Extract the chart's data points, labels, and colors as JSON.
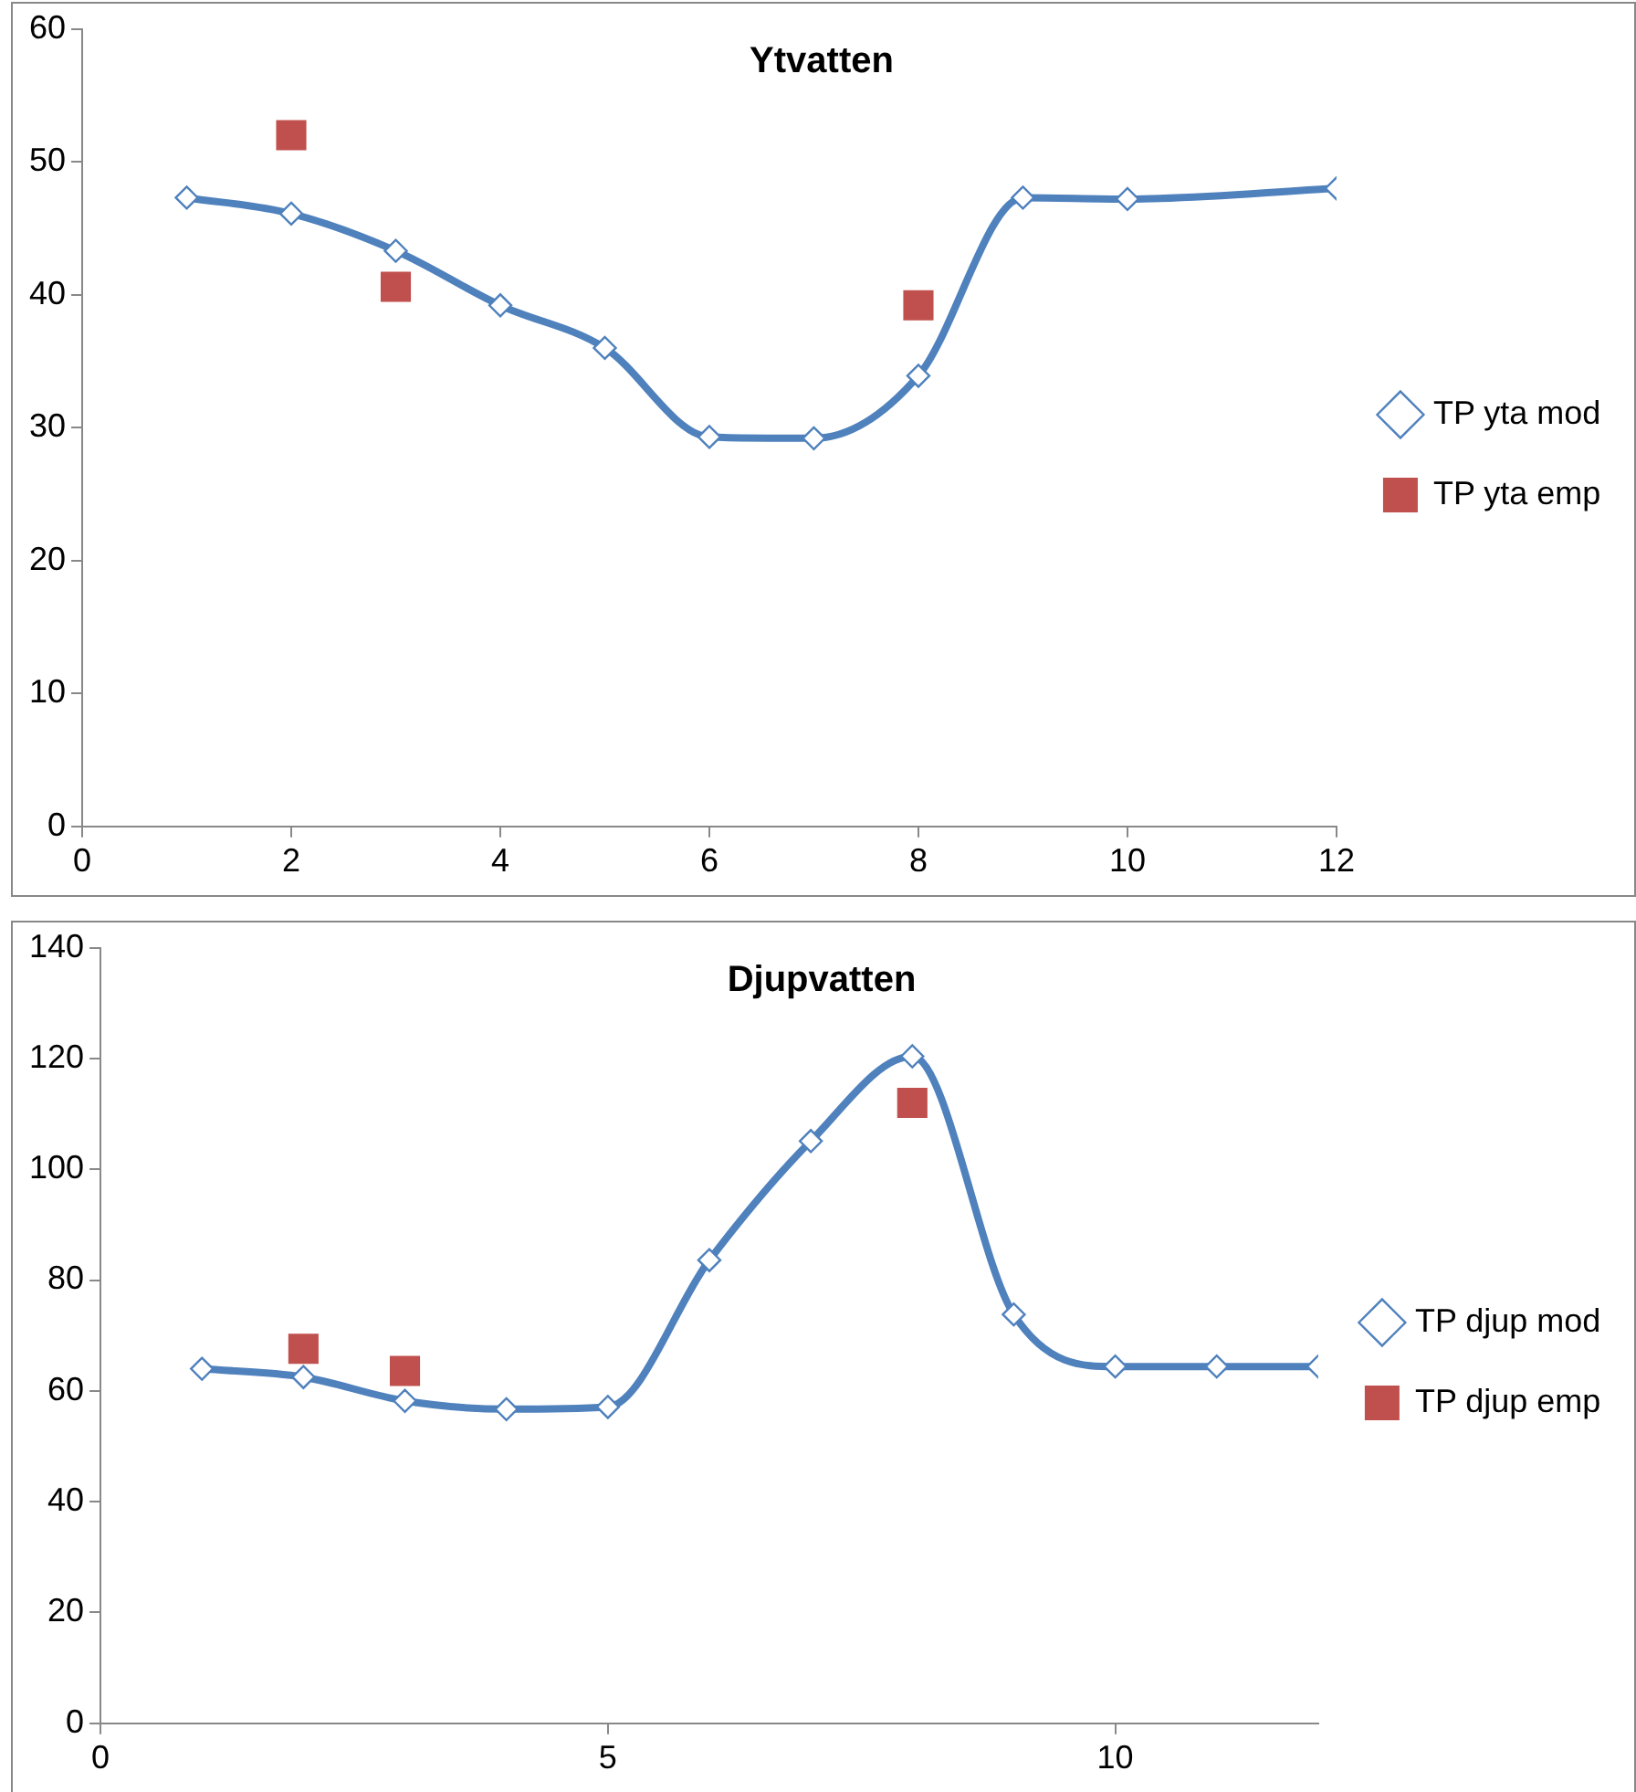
{
  "chart_data": [
    {
      "type": "line",
      "title": "Ytvatten",
      "xlim": [
        0,
        12
      ],
      "xticks": [
        0,
        2,
        4,
        6,
        8,
        10,
        12
      ],
      "ylim": [
        0,
        60
      ],
      "yticks": [
        0,
        10,
        20,
        30,
        40,
        50,
        60
      ],
      "grid": false,
      "legend": "right",
      "series": [
        {
          "name": "TP yta mod",
          "type": "line",
          "color": "#4f81bd",
          "marker": "diamond",
          "x": [
            1,
            2,
            3,
            4,
            5,
            6,
            7,
            8,
            9,
            10,
            12
          ],
          "values": [
            47.3,
            46.1,
            43.3,
            39.2,
            36.0,
            29.3,
            29.2,
            33.9,
            47.3,
            47.2,
            48.0
          ]
        },
        {
          "name": "TP yta emp",
          "type": "scatter",
          "color": "#c0504d",
          "marker": "square",
          "x": [
            2,
            3,
            8
          ],
          "values": [
            52.0,
            40.6,
            39.2
          ]
        }
      ]
    },
    {
      "type": "line",
      "title": "Djupvatten",
      "xlim": [
        0,
        12
      ],
      "xticks": [
        0,
        5,
        10
      ],
      "ylim": [
        0,
        140
      ],
      "yticks": [
        0,
        20,
        40,
        60,
        80,
        100,
        120,
        140
      ],
      "grid": false,
      "legend": "right",
      "series": [
        {
          "name": "TP djup mod",
          "type": "line",
          "color": "#4f81bd",
          "marker": "diamond",
          "x": [
            1,
            2,
            3,
            4,
            5,
            6,
            7,
            8,
            9,
            10,
            11,
            12
          ],
          "values": [
            64.0,
            62.5,
            58.2,
            56.7,
            57.1,
            83.6,
            105.1,
            120.4,
            73.8,
            64.4,
            64.4,
            64.4
          ]
        },
        {
          "name": "TP djup emp",
          "type": "scatter",
          "color": "#c0504d",
          "marker": "square",
          "x": [
            2,
            3,
            8
          ],
          "values": [
            67.6,
            63.6,
            112.0
          ]
        }
      ]
    }
  ]
}
